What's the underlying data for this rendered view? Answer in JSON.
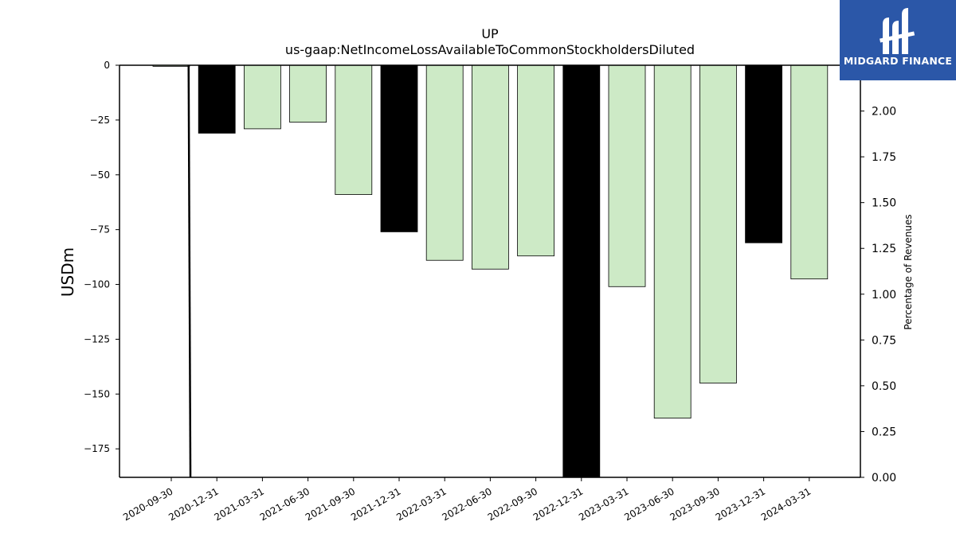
{
  "chart_data": {
    "type": "bar",
    "title": "UP",
    "subtitle": "us-gaap:NetIncomeLossAvailableToCommonStockholdersDiluted",
    "ylabel": "USDm",
    "y2label": "Percentage of Revenues",
    "categories": [
      "2020-09-30",
      "2020-12-31",
      "2021-03-31",
      "2021-06-30",
      "2021-09-30",
      "2021-12-31",
      "2022-03-31",
      "2022-06-30",
      "2022-09-30",
      "2022-12-31",
      "2023-03-31",
      "2023-06-30",
      "2023-09-30",
      "2023-12-31",
      "2024-03-31"
    ],
    "values": [
      -0.5,
      -31,
      -29,
      -26,
      -59,
      -76,
      -89,
      -93,
      -87,
      -188,
      -101,
      -161,
      -145,
      -81,
      -97.5
    ],
    "bar_colors": [
      "#cdeac6",
      "#000000",
      "#cdeac6",
      "#cdeac6",
      "#cdeac6",
      "#000000",
      "#cdeac6",
      "#cdeac6",
      "#cdeac6",
      "#000000",
      "#cdeac6",
      "#cdeac6",
      "#cdeac6",
      "#000000",
      "#cdeac6"
    ],
    "ylim": [
      -188,
      0
    ],
    "yticks": [
      0,
      -25,
      -50,
      -75,
      -100,
      -125,
      -150,
      -175
    ],
    "ytick_labels": [
      "0",
      "−25",
      "−50",
      "−75",
      "−100",
      "−125",
      "−150",
      "−175"
    ],
    "y2lim": [
      0,
      2.25
    ],
    "y2ticks": [
      0,
      0.25,
      0.5,
      0.75,
      1.0,
      1.25,
      1.5,
      1.75,
      2.0
    ],
    "y2tick_labels": [
      "0.00",
      "0.25",
      "0.50",
      "0.75",
      "1.00",
      "1.25",
      "1.50",
      "1.75",
      "2.00"
    ],
    "line_series": {
      "axis": "right",
      "points": [
        {
          "x": "2020-09-30",
          "x_offset": 0.38,
          "y": 2.25
        },
        {
          "x": "2020-09-30",
          "x_offset": 0.42,
          "y": 0
        }
      ]
    },
    "grid": false,
    "legend": "none"
  },
  "logo": {
    "text": "MIDGARD FINANCE",
    "color": "#2b57a8"
  }
}
